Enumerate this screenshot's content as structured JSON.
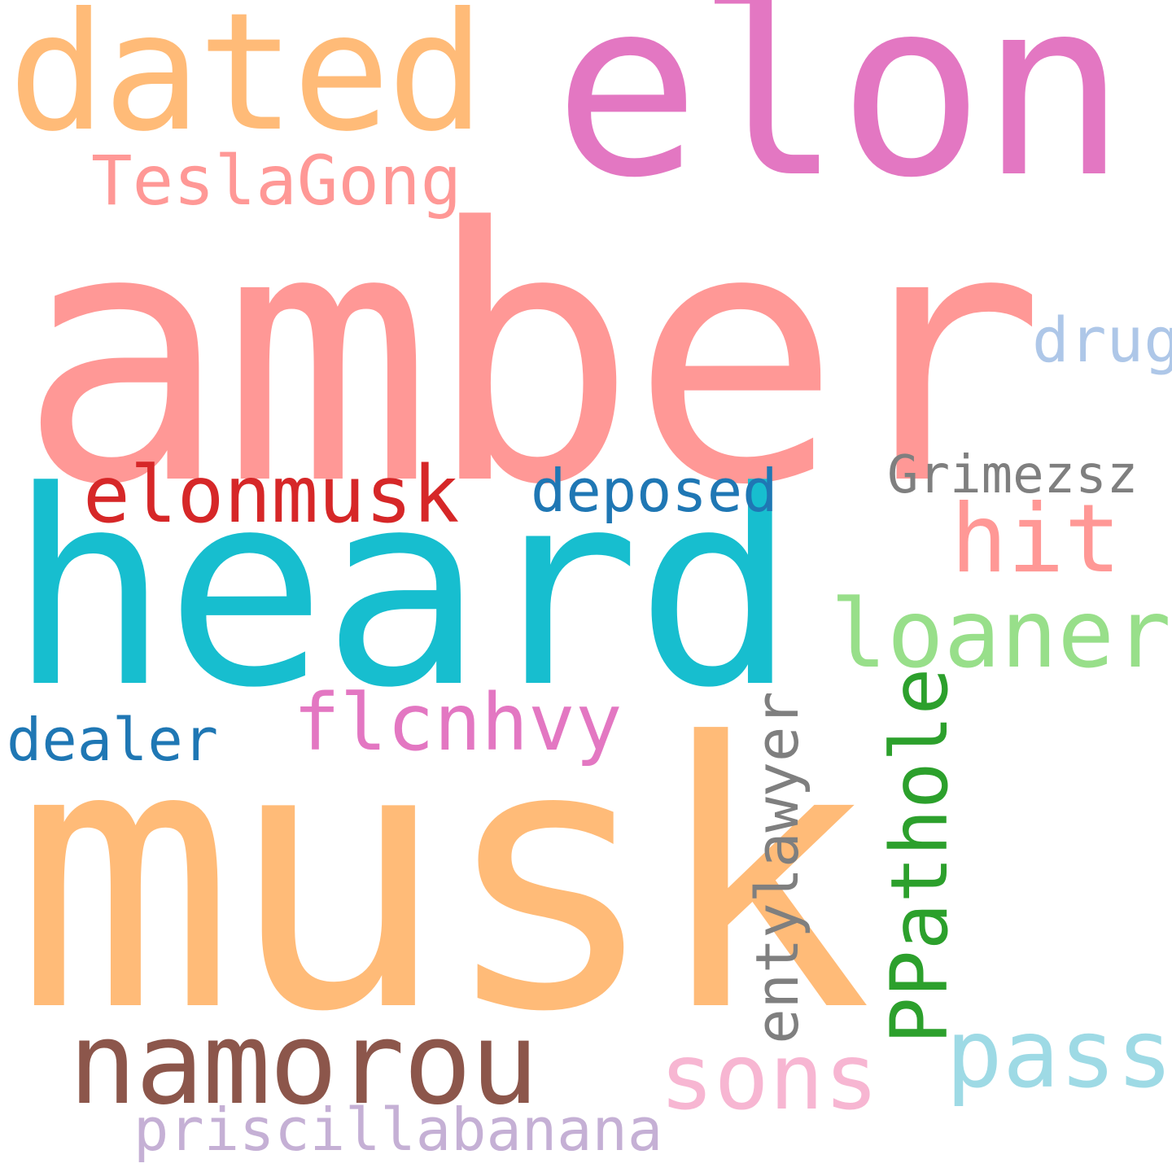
{
  "words": {
    "amber": {
      "text": "amber",
      "color": "#ff9896"
    },
    "musk": {
      "text": "musk",
      "color": "#ffbb78"
    },
    "heard": {
      "text": "heard",
      "color": "#17becf"
    },
    "elon": {
      "text": "elon",
      "color": "#e377c2"
    },
    "dated": {
      "text": "dated",
      "color": "#ffbb78"
    },
    "teslagong": {
      "text": "TeslaGong",
      "color": "#ff9896"
    },
    "elonmusk": {
      "text": "elonmusk",
      "color": "#d62728"
    },
    "deposed": {
      "text": "deposed",
      "color": "#1f77b4"
    },
    "grimezsz": {
      "text": "Grimezsz",
      "color": "#7f7f7f"
    },
    "hit": {
      "text": "hit",
      "color": "#ff9896"
    },
    "loaner": {
      "text": "loaner",
      "color": "#98df8a"
    },
    "drug": {
      "text": "drug",
      "color": "#aec7e8"
    },
    "flcnhvy": {
      "text": "flcnhvy",
      "color": "#e377c2"
    },
    "dealer": {
      "text": "dealer",
      "color": "#1f77b4"
    },
    "namorou": {
      "text": "namorou",
      "color": "#8c564b"
    },
    "sons": {
      "text": "sons",
      "color": "#f7b6d2"
    },
    "pass": {
      "text": "pass",
      "color": "#9edae5"
    },
    "priscillabanana": {
      "text": "priscillabanana",
      "color": "#c5b0d5"
    },
    "ppathole": {
      "text": "PPathole",
      "color": "#2ca02c"
    },
    "entylawyer": {
      "text": "entylawyer",
      "color": "#7f7f7f"
    }
  }
}
